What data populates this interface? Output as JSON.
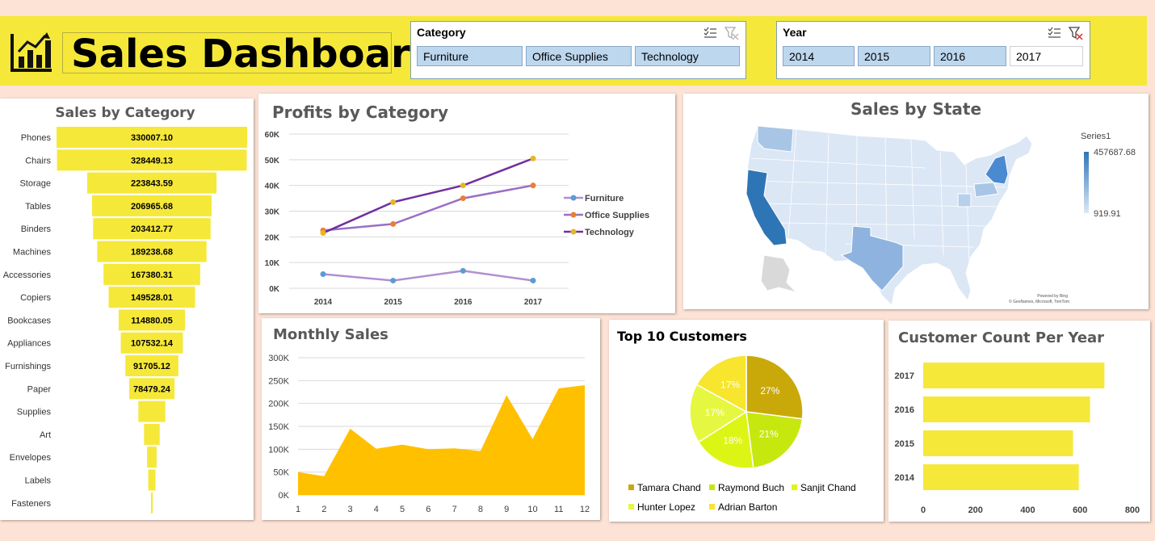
{
  "header": {
    "title": "Sales Dashboard",
    "bg_color": "#f5e839",
    "logo_icon": "bar-chart-growth-icon"
  },
  "slicers": {
    "category": {
      "title": "Category",
      "items": [
        {
          "label": "Furniture",
          "selected": true
        },
        {
          "label": "Office Supplies",
          "selected": true
        },
        {
          "label": "Technology",
          "selected": true
        }
      ],
      "icons": [
        "multi-select-icon",
        "clear-filter-icon"
      ]
    },
    "year": {
      "title": "Year",
      "items": [
        {
          "label": "2014",
          "selected": true
        },
        {
          "label": "2015",
          "selected": true
        },
        {
          "label": "2016",
          "selected": true
        },
        {
          "label": "2017",
          "selected": false
        }
      ],
      "icons": [
        "multi-select-icon",
        "clear-filter-icon"
      ]
    }
  },
  "sales_by_category": {
    "chart_data": {
      "type": "bar",
      "title": "Sales by Category",
      "orientation": "horizontal-funnel",
      "categories": [
        "Phones",
        "Chairs",
        "Storage",
        "Tables",
        "Binders",
        "Machines",
        "Accessories",
        "Copiers",
        "Bookcases",
        "Appliances",
        "Furnishings",
        "Paper",
        "Supplies",
        "Art",
        "Envelopes",
        "Labels",
        "Fasteners"
      ],
      "values": [
        330007.1,
        328449.13,
        223843.59,
        206965.68,
        203412.77,
        189238.68,
        167380.31,
        149528.01,
        114880.05,
        107532.14,
        91705.12,
        78479.24,
        46673.54,
        27118.79,
        16476.4,
        12486.31,
        3024.28
      ],
      "labels": [
        "330007.10",
        "328449.13",
        "223843.59",
        "206965.68",
        "203412.77",
        "189238.68",
        "167380.31",
        "149528.01",
        "114880.05",
        "107532.14",
        "91705.12",
        "78479.24",
        "",
        "",
        "",
        "",
        ""
      ],
      "color": "#f5e839"
    }
  },
  "profits_by_category": {
    "chart_data": {
      "type": "line",
      "title": "Profits by Category",
      "x": [
        "2014",
        "2015",
        "2016",
        "2017"
      ],
      "y_ticks": [
        "0K",
        "10K",
        "20K",
        "30K",
        "40K",
        "50K",
        "60K"
      ],
      "ylim": [
        0,
        60000
      ],
      "series": [
        {
          "name": "Furniture",
          "values": [
            5500,
            3000,
            6800,
            3000
          ],
          "line_color": "#b18fd0",
          "marker_color": "#5b9bd5"
        },
        {
          "name": "Office Supplies",
          "values": [
            22500,
            25000,
            35000,
            40000
          ],
          "line_color": "#9b6fc4",
          "marker_color": "#ed7d31"
        },
        {
          "name": "Technology",
          "values": [
            21500,
            33500,
            40000,
            50500
          ],
          "line_color": "#7030a0",
          "marker_color": "#e6b820"
        }
      ],
      "legend": "right"
    }
  },
  "sales_by_state": {
    "chart_data": {
      "type": "map",
      "title": "Sales by State",
      "legend_series": "Series1",
      "max_label": "457687.68",
      "min_label": "919.91",
      "attribution_1": "Powered by Bing",
      "attribution_2": "© GeoNames, Microsoft, TomTom",
      "color_scale": [
        "#dde9f6",
        "#2e75b6"
      ]
    }
  },
  "monthly_sales": {
    "chart_data": {
      "type": "area",
      "title": "Monthly Sales",
      "x": [
        1,
        2,
        3,
        4,
        5,
        6,
        7,
        8,
        9,
        10,
        11,
        12
      ],
      "values": [
        50000,
        41000,
        145000,
        101000,
        110000,
        100000,
        102000,
        96000,
        218000,
        122000,
        233000,
        240000
      ],
      "y_ticks": [
        "0K",
        "50K",
        "100K",
        "150K",
        "200K",
        "250K",
        "300K"
      ],
      "ylim": [
        0,
        300000
      ],
      "color": "#ffc000"
    }
  },
  "top_customers": {
    "chart_data": {
      "type": "pie",
      "title": "Top 10 Customers",
      "slices": [
        {
          "name": "Tamara Chand",
          "value": 27,
          "label": "27%",
          "color": "#c9a90a"
        },
        {
          "name": "Raymond Buch",
          "value": 21,
          "label": "21%",
          "color": "#c6e80e"
        },
        {
          "name": "Sanjit Chand",
          "value": 18,
          "label": "18%",
          "color": "#ddf514"
        },
        {
          "name": "Hunter Lopez",
          "value": 17,
          "label": "17%",
          "color": "#e6f741"
        },
        {
          "name": "Adrian Barton",
          "value": 17,
          "label": "17%",
          "color": "#f7e52e"
        }
      ],
      "legend": "bottom"
    }
  },
  "customer_count": {
    "chart_data": {
      "type": "bar",
      "title": "Customer Count Per Year",
      "orientation": "horizontal",
      "categories": [
        "2017",
        "2016",
        "2015",
        "2014"
      ],
      "values": [
        693,
        638,
        573,
        595
      ],
      "x_ticks": [
        "0",
        "200",
        "400",
        "600",
        "800"
      ],
      "xlim": [
        0,
        800
      ],
      "color": "#f5e839"
    }
  }
}
